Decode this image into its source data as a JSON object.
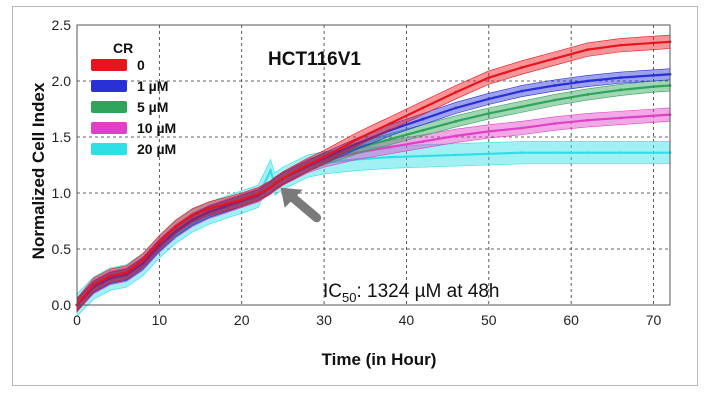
{
  "chart_data": {
    "type": "line",
    "title": "HCT116V1",
    "xlabel": "Time (in Hour)",
    "ylabel": "Normalized Cell Index",
    "xlim": [
      0,
      72
    ],
    "ylim": [
      0,
      2.5
    ],
    "xticks": [
      "0",
      "10",
      "20",
      "30",
      "40",
      "50",
      "60",
      "70"
    ],
    "yticks": [
      "0.0",
      "0.5",
      "1.0",
      "1.5",
      "2.0",
      "2.5"
    ],
    "grid": true,
    "legend_title": "CR",
    "legend_position": "top-left",
    "annotation": {
      "prefix": "IC",
      "subscript": "50",
      "suffix": ": 1324 µM at 48h"
    },
    "arrow_annotation_at": {
      "x": 24,
      "y": 1.1
    },
    "series": [
      {
        "name": "0",
        "color": "#e8141c",
        "error": 0.06,
        "x": [
          0,
          2,
          4,
          6,
          8,
          10,
          12,
          14,
          16,
          18,
          20,
          22,
          23.5,
          24,
          25,
          28,
          30,
          34,
          38,
          42,
          46,
          50,
          54,
          58,
          62,
          66,
          70,
          72
        ],
        "y": [
          0,
          0.18,
          0.26,
          0.29,
          0.4,
          0.56,
          0.7,
          0.8,
          0.86,
          0.9,
          0.94,
          0.99,
          1.05,
          1.08,
          1.13,
          1.25,
          1.32,
          1.48,
          1.62,
          1.76,
          1.9,
          2.03,
          2.12,
          2.2,
          2.28,
          2.32,
          2.34,
          2.35
        ]
      },
      {
        "name": "1 µM",
        "color": "#2830d6",
        "error": 0.05,
        "x": [
          0,
          2,
          4,
          6,
          8,
          10,
          12,
          14,
          16,
          18,
          20,
          22,
          23.5,
          24,
          25,
          28,
          30,
          34,
          38,
          42,
          46,
          50,
          54,
          58,
          62,
          66,
          70,
          72
        ],
        "y": [
          0,
          0.16,
          0.24,
          0.27,
          0.37,
          0.53,
          0.66,
          0.76,
          0.83,
          0.88,
          0.93,
          0.98,
          1.05,
          1.08,
          1.13,
          1.24,
          1.31,
          1.44,
          1.56,
          1.66,
          1.76,
          1.84,
          1.91,
          1.96,
          2.0,
          2.03,
          2.05,
          2.06
        ]
      },
      {
        "name": "5 µM",
        "color": "#2ea55a",
        "error": 0.05,
        "x": [
          0,
          2,
          4,
          6,
          8,
          10,
          12,
          14,
          16,
          18,
          20,
          22,
          23.5,
          24,
          25,
          28,
          30,
          34,
          38,
          42,
          46,
          50,
          54,
          58,
          62,
          66,
          70,
          72
        ],
        "y": [
          0,
          0.16,
          0.24,
          0.27,
          0.37,
          0.53,
          0.66,
          0.76,
          0.83,
          0.88,
          0.93,
          0.98,
          1.05,
          1.08,
          1.13,
          1.24,
          1.3,
          1.4,
          1.48,
          1.56,
          1.64,
          1.71,
          1.77,
          1.83,
          1.88,
          1.92,
          1.95,
          1.96
        ]
      },
      {
        "name": "10 µM",
        "color": "#e040c8",
        "error": 0.06,
        "x": [
          0,
          2,
          4,
          6,
          8,
          10,
          12,
          14,
          16,
          18,
          20,
          22,
          23.5,
          24,
          25,
          28,
          30,
          34,
          38,
          42,
          46,
          50,
          54,
          58,
          62,
          66,
          70,
          72
        ],
        "y": [
          0,
          0.16,
          0.24,
          0.27,
          0.37,
          0.53,
          0.66,
          0.76,
          0.83,
          0.88,
          0.93,
          0.98,
          1.05,
          1.08,
          1.13,
          1.24,
          1.29,
          1.36,
          1.41,
          1.46,
          1.51,
          1.55,
          1.58,
          1.62,
          1.65,
          1.67,
          1.69,
          1.7
        ]
      },
      {
        "name": "20 µM",
        "color": "#2ee0e6",
        "error": 0.1,
        "x": [
          0,
          2,
          4,
          6,
          8,
          10,
          12,
          14,
          16,
          18,
          20,
          22,
          23.5,
          24,
          25,
          28,
          30,
          34,
          38,
          42,
          46,
          50,
          54,
          58,
          62,
          66,
          70,
          72
        ],
        "y": [
          0,
          0.15,
          0.23,
          0.26,
          0.36,
          0.52,
          0.65,
          0.75,
          0.82,
          0.87,
          0.92,
          0.97,
          1.2,
          1.08,
          1.13,
          1.24,
          1.27,
          1.3,
          1.32,
          1.33,
          1.34,
          1.35,
          1.36,
          1.36,
          1.36,
          1.36,
          1.36,
          1.36
        ]
      }
    ]
  }
}
